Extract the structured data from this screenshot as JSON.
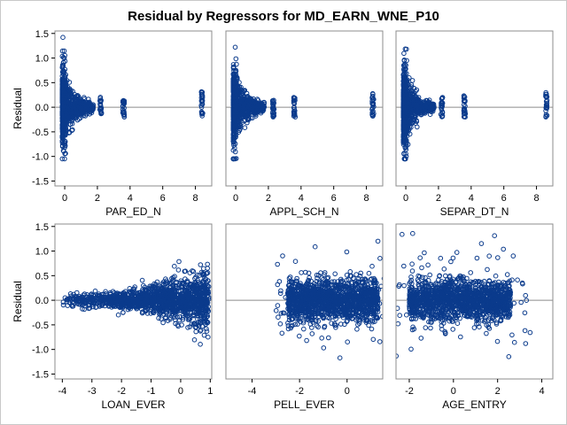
{
  "chart_data": {
    "type": "scatter",
    "title": "Residual by Regressors for MD_EARN_WNE_P10",
    "ylabel": "Residual",
    "ylim": [
      -1.6,
      1.55
    ],
    "yticks": [
      -1.5,
      -1.0,
      -0.5,
      0.0,
      0.5,
      1.0,
      1.5
    ],
    "yticklabels": [
      "-1.5",
      "-1.0",
      "-0.5",
      "0.0",
      "0.5",
      "1.0",
      "1.5"
    ],
    "reference_line_y": 0,
    "marker_color": "#0b3b8c",
    "frame_color": "#8c8c8c",
    "panels": [
      {
        "xlabel": "PAR_ED_N",
        "xlim": [
          -0.6,
          9.0
        ],
        "xticks": [
          0,
          2,
          4,
          6,
          8
        ],
        "pattern": "skew",
        "clusters": [
          {
            "x": 2.2,
            "spread": [
              -0.15,
              0.22
            ]
          },
          {
            "x": 3.6,
            "spread": [
              -0.2,
              0.15
            ]
          },
          {
            "x": 8.4,
            "spread": [
              -0.2,
              0.32
            ]
          }
        ]
      },
      {
        "xlabel": "APPL_SCH_N",
        "xlim": [
          -0.6,
          9.0
        ],
        "xticks": [
          0,
          2,
          4,
          6,
          8
        ],
        "pattern": "skew",
        "clusters": [
          {
            "x": 2.3,
            "spread": [
              -0.2,
              0.15
            ]
          },
          {
            "x": 3.6,
            "spread": [
              -0.22,
              0.2
            ]
          },
          {
            "x": 8.4,
            "spread": [
              -0.2,
              0.3
            ]
          }
        ]
      },
      {
        "xlabel": "SEPAR_DT_N",
        "xlim": [
          -0.6,
          9.0
        ],
        "xticks": [
          0,
          2,
          4,
          6,
          8
        ],
        "pattern": "skew",
        "clusters": [
          {
            "x": 2.2,
            "spread": [
              -0.2,
              0.2
            ]
          },
          {
            "x": 3.6,
            "spread": [
              -0.2,
              0.25
            ]
          },
          {
            "x": 8.6,
            "spread": [
              -0.2,
              0.3
            ]
          }
        ]
      },
      {
        "xlabel": "LOAN_EVER",
        "xlim": [
          -4.25,
          1.05
        ],
        "xticks": [
          -4,
          -3,
          -2,
          -1,
          0,
          1
        ],
        "pattern": "funnel"
      },
      {
        "xlabel": "PELL_EVER",
        "xlim": [
          -5.1,
          1.5
        ],
        "xticks": [
          -4,
          -2,
          0
        ],
        "pattern": "band",
        "band": [
          -2.5,
          1.3
        ]
      },
      {
        "xlabel": "AGE_ENTRY",
        "xlim": [
          -2.6,
          4.5
        ],
        "xticks": [
          -2,
          0,
          2,
          4
        ],
        "pattern": "band",
        "band": [
          -2.0,
          2.6
        ]
      }
    ]
  }
}
